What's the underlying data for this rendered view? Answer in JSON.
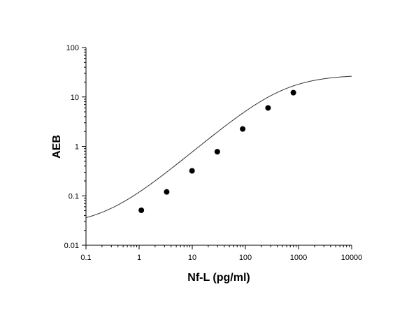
{
  "chart_data": {
    "type": "scatter",
    "title": "",
    "xlabel": "Nf-L (pg/ml)",
    "ylabel": "AEB",
    "xscale": "log",
    "yscale": "log",
    "xlim": [
      0.1,
      10000
    ],
    "ylim": [
      0.01,
      100
    ],
    "grid": false,
    "legend": "none",
    "x_ticks": [
      {
        "value": 0.1,
        "label": "0.1"
      },
      {
        "value": 1,
        "label": "1"
      },
      {
        "value": 10,
        "label": "10"
      },
      {
        "value": 100,
        "label": "100"
      },
      {
        "value": 1000,
        "label": "1000"
      },
      {
        "value": 10000,
        "label": "10000"
      }
    ],
    "y_ticks": [
      {
        "value": 0.01,
        "label": "0.01"
      },
      {
        "value": 0.1,
        "label": "0.1"
      },
      {
        "value": 1,
        "label": "1"
      },
      {
        "value": 10,
        "label": "10"
      },
      {
        "value": 100,
        "label": "100"
      }
    ],
    "series": [
      {
        "style": "markers",
        "x": [
          1.1,
          3.3,
          9.9,
          29.6,
          88.9,
          267,
          800
        ],
        "y": [
          0.051,
          0.12,
          0.32,
          0.78,
          2.25,
          6.0,
          12.2
        ]
      },
      {
        "style": "fit-curve",
        "model": "4PL",
        "bottom": 0.0245,
        "top": 28,
        "ec50": 520,
        "hill": 0.91
      }
    ],
    "colors": {
      "markers": "#000000",
      "curve": "#333333",
      "axes": "#000000"
    }
  }
}
